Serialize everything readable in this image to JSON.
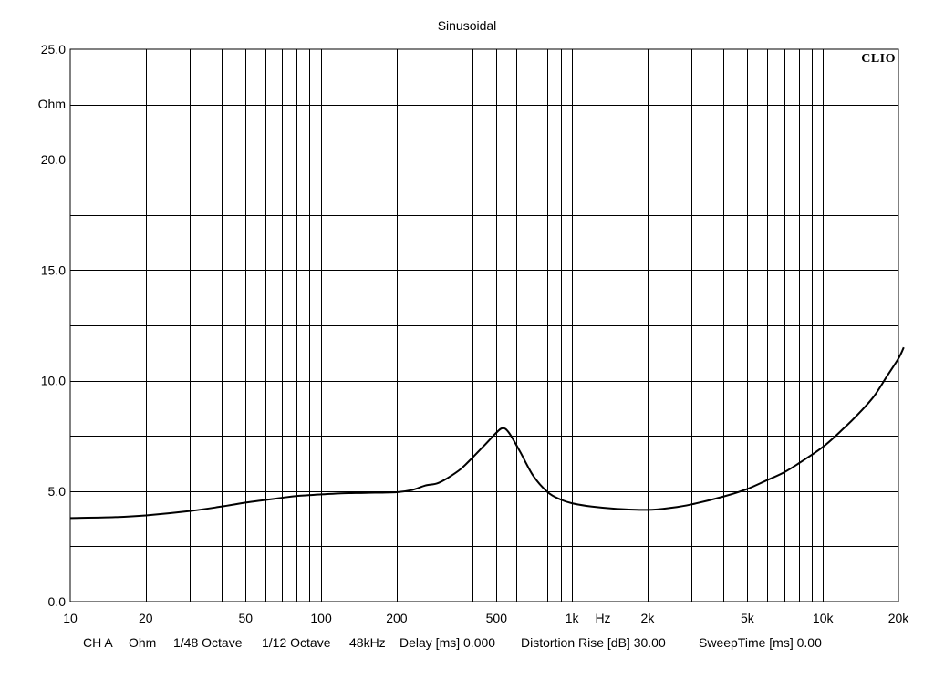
{
  "chart_data": {
    "type": "line",
    "title": "Sinusoidal",
    "brand": "CLIO",
    "x_scale": "log",
    "xlim": [
      10,
      20000
    ],
    "ylim": [
      0,
      25
    ],
    "grid": true,
    "xlabel": "Hz",
    "ylabel": "Ohm",
    "x_ticks": [
      {
        "value": 10,
        "label": "10"
      },
      {
        "value": 20,
        "label": "20"
      },
      {
        "value": 50,
        "label": "50"
      },
      {
        "value": 100,
        "label": "100"
      },
      {
        "value": 200,
        "label": "200"
      },
      {
        "value": 500,
        "label": "500"
      },
      {
        "value": 1000,
        "label": "1k"
      },
      {
        "value": 2000,
        "label": "2k"
      },
      {
        "value": 5000,
        "label": "5k"
      },
      {
        "value": 10000,
        "label": "10k"
      },
      {
        "value": 20000,
        "label": "20k"
      }
    ],
    "y_ticks": [
      {
        "value": 0,
        "label": "0.0"
      },
      {
        "value": 5,
        "label": "5.0"
      },
      {
        "value": 10,
        "label": "10.0"
      },
      {
        "value": 15,
        "label": "15.0"
      },
      {
        "value": 20,
        "label": "20.0"
      },
      {
        "value": 25,
        "label": "25.0"
      }
    ],
    "series": [
      {
        "color": "#000000",
        "points": [
          [
            10,
            3.78
          ],
          [
            15,
            3.82
          ],
          [
            20,
            3.9
          ],
          [
            30,
            4.1
          ],
          [
            40,
            4.3
          ],
          [
            50,
            4.48
          ],
          [
            60,
            4.6
          ],
          [
            70,
            4.7
          ],
          [
            80,
            4.78
          ],
          [
            100,
            4.85
          ],
          [
            120,
            4.9
          ],
          [
            150,
            4.92
          ],
          [
            200,
            4.95
          ],
          [
            230,
            5.05
          ],
          [
            260,
            5.25
          ],
          [
            290,
            5.35
          ],
          [
            320,
            5.6
          ],
          [
            360,
            6.0
          ],
          [
            400,
            6.5
          ],
          [
            450,
            7.1
          ],
          [
            500,
            7.65
          ],
          [
            530,
            7.85
          ],
          [
            560,
            7.65
          ],
          [
            620,
            6.8
          ],
          [
            700,
            5.7
          ],
          [
            800,
            4.95
          ],
          [
            900,
            4.62
          ],
          [
            1000,
            4.45
          ],
          [
            1200,
            4.3
          ],
          [
            1500,
            4.2
          ],
          [
            2000,
            4.15
          ],
          [
            2500,
            4.25
          ],
          [
            3000,
            4.4
          ],
          [
            4000,
            4.75
          ],
          [
            5000,
            5.1
          ],
          [
            6000,
            5.5
          ],
          [
            7000,
            5.85
          ],
          [
            8000,
            6.25
          ],
          [
            10000,
            7.0
          ],
          [
            12000,
            7.8
          ],
          [
            14000,
            8.55
          ],
          [
            16000,
            9.3
          ],
          [
            18000,
            10.2
          ],
          [
            20000,
            11.0
          ],
          [
            21000,
            11.5
          ]
        ]
      }
    ]
  },
  "footer": {
    "items": [
      "CH A",
      "Ohm",
      "1/48 Octave",
      "1/12 Octave",
      "48kHz",
      "Delay [ms] 0.000",
      "Distortion Rise [dB] 30.00",
      "SweepTime [ms] 0.00"
    ]
  }
}
